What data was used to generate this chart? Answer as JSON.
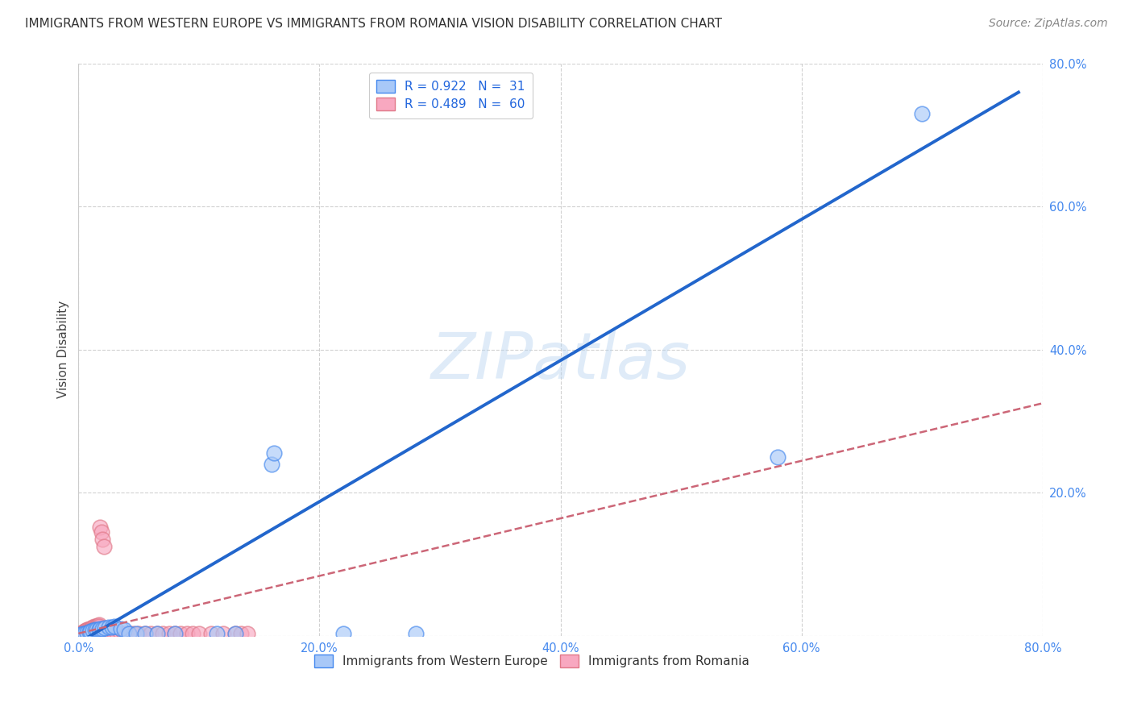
{
  "title": "IMMIGRANTS FROM WESTERN EUROPE VS IMMIGRANTS FROM ROMANIA VISION DISABILITY CORRELATION CHART",
  "source": "Source: ZipAtlas.com",
  "ylabel": "Vision Disability",
  "xlim": [
    0.0,
    0.8
  ],
  "ylim": [
    0.0,
    0.8
  ],
  "xticks": [
    0.0,
    0.2,
    0.4,
    0.6,
    0.8
  ],
  "yticks": [
    0.0,
    0.2,
    0.4,
    0.6,
    0.8
  ],
  "xticklabels": [
    "0.0%",
    "20.0%",
    "40.0%",
    "60.0%",
    "80.0%"
  ],
  "yticklabels": [
    "",
    "20.0%",
    "40.0%",
    "60.0%",
    "80.0%"
  ],
  "blue_R": 0.922,
  "blue_N": 31,
  "pink_R": 0.489,
  "pink_N": 60,
  "blue_color": "#a8c8f8",
  "pink_color": "#f8a8c0",
  "blue_edge_color": "#4488ee",
  "pink_edge_color": "#e07888",
  "blue_line_color": "#2266cc",
  "pink_line_color": "#cc6677",
  "watermark": "ZIPatlas",
  "blue_scatter": [
    [
      0.002,
      0.002
    ],
    [
      0.004,
      0.003
    ],
    [
      0.005,
      0.003
    ],
    [
      0.007,
      0.004
    ],
    [
      0.009,
      0.005
    ],
    [
      0.01,
      0.006
    ],
    [
      0.012,
      0.007
    ],
    [
      0.014,
      0.008
    ],
    [
      0.015,
      0.009
    ],
    [
      0.017,
      0.008
    ],
    [
      0.018,
      0.01
    ],
    [
      0.02,
      0.01
    ],
    [
      0.022,
      0.011
    ],
    [
      0.025,
      0.012
    ],
    [
      0.028,
      0.012
    ],
    [
      0.03,
      0.013
    ],
    [
      0.035,
      0.01
    ],
    [
      0.038,
      0.009
    ],
    [
      0.042,
      0.003
    ],
    [
      0.048,
      0.003
    ],
    [
      0.055,
      0.003
    ],
    [
      0.065,
      0.003
    ],
    [
      0.08,
      0.003
    ],
    [
      0.115,
      0.003
    ],
    [
      0.13,
      0.003
    ],
    [
      0.16,
      0.24
    ],
    [
      0.162,
      0.255
    ],
    [
      0.22,
      0.003
    ],
    [
      0.28,
      0.003
    ],
    [
      0.58,
      0.25
    ],
    [
      0.7,
      0.73
    ]
  ],
  "pink_scatter": [
    [
      0.001,
      0.002
    ],
    [
      0.002,
      0.002
    ],
    [
      0.002,
      0.003
    ],
    [
      0.003,
      0.003
    ],
    [
      0.003,
      0.004
    ],
    [
      0.004,
      0.004
    ],
    [
      0.004,
      0.005
    ],
    [
      0.005,
      0.005
    ],
    [
      0.005,
      0.006
    ],
    [
      0.006,
      0.006
    ],
    [
      0.006,
      0.007
    ],
    [
      0.007,
      0.007
    ],
    [
      0.007,
      0.008
    ],
    [
      0.008,
      0.006
    ],
    [
      0.008,
      0.009
    ],
    [
      0.009,
      0.007
    ],
    [
      0.009,
      0.01
    ],
    [
      0.01,
      0.008
    ],
    [
      0.01,
      0.009
    ],
    [
      0.011,
      0.01
    ],
    [
      0.011,
      0.011
    ],
    [
      0.012,
      0.01
    ],
    [
      0.012,
      0.012
    ],
    [
      0.013,
      0.011
    ],
    [
      0.013,
      0.013
    ],
    [
      0.014,
      0.012
    ],
    [
      0.015,
      0.013
    ],
    [
      0.016,
      0.014
    ],
    [
      0.017,
      0.015
    ],
    [
      0.017,
      0.013
    ],
    [
      0.018,
      0.152
    ],
    [
      0.019,
      0.145
    ],
    [
      0.02,
      0.135
    ],
    [
      0.021,
      0.125
    ],
    [
      0.022,
      0.003
    ],
    [
      0.025,
      0.003
    ],
    [
      0.028,
      0.003
    ],
    [
      0.03,
      0.003
    ],
    [
      0.032,
      0.003
    ],
    [
      0.035,
      0.003
    ],
    [
      0.038,
      0.003
    ],
    [
      0.04,
      0.003
    ],
    [
      0.042,
      0.003
    ],
    [
      0.045,
      0.003
    ],
    [
      0.05,
      0.003
    ],
    [
      0.055,
      0.003
    ],
    [
      0.06,
      0.003
    ],
    [
      0.065,
      0.003
    ],
    [
      0.07,
      0.003
    ],
    [
      0.075,
      0.003
    ],
    [
      0.08,
      0.003
    ],
    [
      0.085,
      0.003
    ],
    [
      0.09,
      0.003
    ],
    [
      0.095,
      0.003
    ],
    [
      0.1,
      0.003
    ],
    [
      0.11,
      0.003
    ],
    [
      0.12,
      0.003
    ],
    [
      0.13,
      0.003
    ],
    [
      0.135,
      0.003
    ],
    [
      0.14,
      0.003
    ]
  ],
  "blue_line_x0": 0.0,
  "blue_line_y0": -0.01,
  "blue_line_x1": 0.78,
  "blue_line_y1": 0.76,
  "pink_line_x0": 0.0,
  "pink_line_y0": 0.003,
  "pink_line_x1": 0.8,
  "pink_line_y1": 0.325,
  "grid_color": "#cccccc",
  "background_color": "#ffffff",
  "title_fontsize": 11,
  "axis_label_fontsize": 11,
  "tick_fontsize": 10.5,
  "legend_fontsize": 11,
  "source_fontsize": 10
}
